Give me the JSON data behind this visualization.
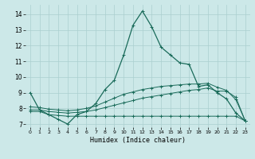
{
  "xlabel": "Humidex (Indice chaleur)",
  "bg_color": "#cce8e8",
  "grid_color": "#aacfcf",
  "line_color": "#1a6b5a",
  "ylim": [
    6.8,
    14.6
  ],
  "xlim": [
    -0.5,
    23.5
  ],
  "x_ticks": [
    0,
    1,
    2,
    3,
    4,
    5,
    6,
    7,
    8,
    9,
    10,
    11,
    12,
    13,
    14,
    15,
    16,
    17,
    18,
    19,
    20,
    21,
    22,
    23
  ],
  "y_ticks": [
    7,
    8,
    9,
    10,
    11,
    12,
    13,
    14
  ],
  "series1_y": [
    9.0,
    7.9,
    7.6,
    7.3,
    7.0,
    7.6,
    7.8,
    8.3,
    9.2,
    9.8,
    11.4,
    13.3,
    14.2,
    13.2,
    11.9,
    11.4,
    10.9,
    10.8,
    9.4,
    9.5,
    9.0,
    8.6,
    7.7,
    7.2
  ],
  "series2_y": [
    7.8,
    7.8,
    7.6,
    7.55,
    7.5,
    7.5,
    7.5,
    7.5,
    7.5,
    7.5,
    7.5,
    7.5,
    7.5,
    7.5,
    7.5,
    7.5,
    7.5,
    7.5,
    7.5,
    7.5,
    7.5,
    7.5,
    7.5,
    7.2
  ],
  "series3_y": [
    7.9,
    7.9,
    7.8,
    7.75,
    7.7,
    7.75,
    7.8,
    7.9,
    8.05,
    8.2,
    8.35,
    8.5,
    8.65,
    8.75,
    8.85,
    8.95,
    9.05,
    9.15,
    9.2,
    9.3,
    9.1,
    9.1,
    8.7,
    7.2
  ],
  "series4_y": [
    8.1,
    8.05,
    7.95,
    7.9,
    7.85,
    7.9,
    8.0,
    8.15,
    8.4,
    8.65,
    8.9,
    9.05,
    9.2,
    9.3,
    9.4,
    9.45,
    9.5,
    9.55,
    9.55,
    9.6,
    9.35,
    9.15,
    8.55,
    7.2
  ]
}
